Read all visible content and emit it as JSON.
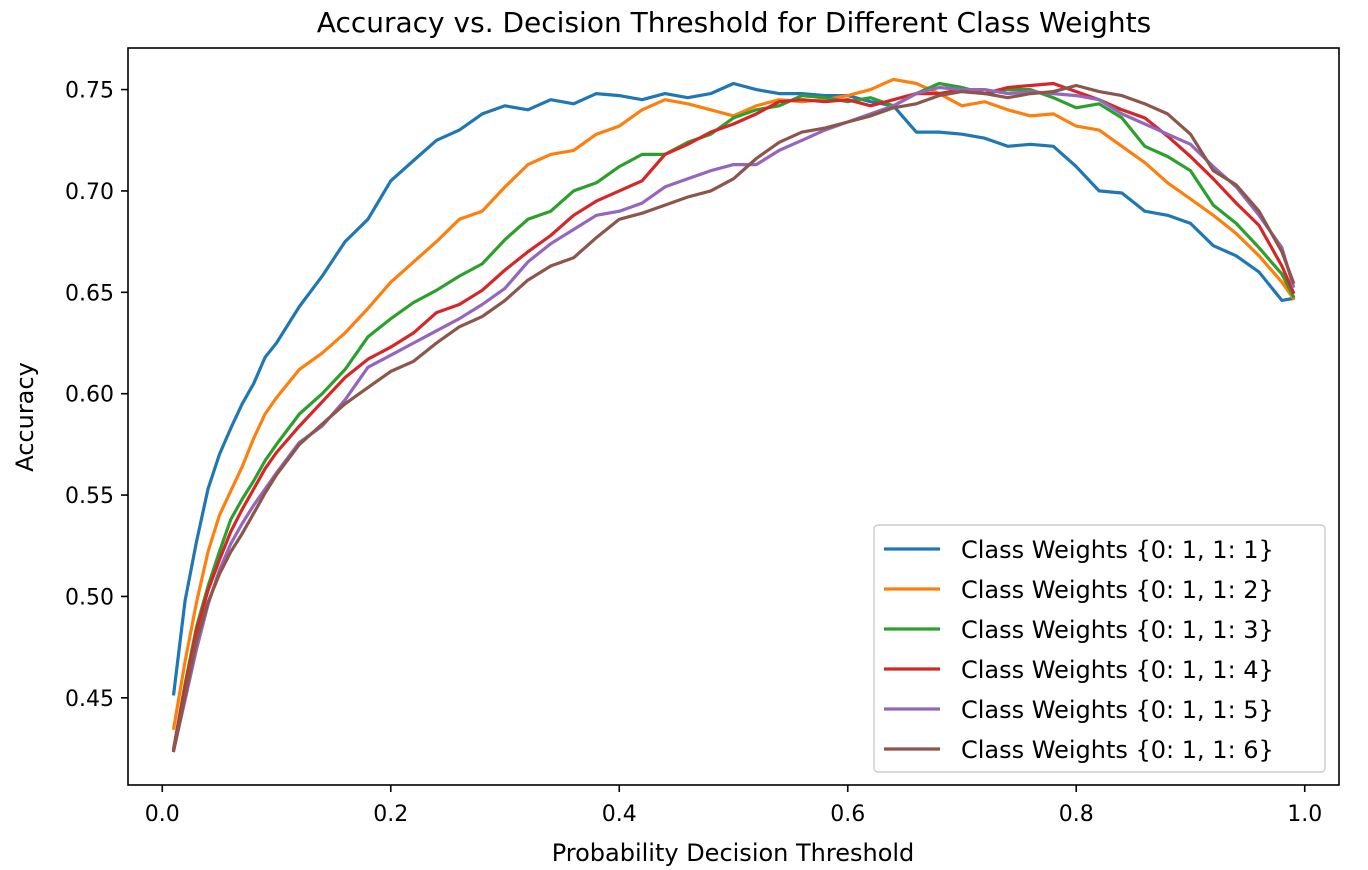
{
  "chart_data": {
    "type": "line",
    "title": "Accuracy vs. Decision Threshold for Different Class Weights",
    "xlabel": "Probability Decision Threshold",
    "ylabel": "Accuracy",
    "xlim": [
      -0.03,
      1.03
    ],
    "ylim": [
      0.407,
      0.7705
    ],
    "xticks": [
      0.0,
      0.2,
      0.4,
      0.6,
      0.8,
      1.0
    ],
    "xtick_labels": [
      "0.0",
      "0.2",
      "0.4",
      "0.6",
      "0.8",
      "1.0"
    ],
    "yticks": [
      0.45,
      0.5,
      0.55,
      0.6,
      0.65,
      0.7,
      0.75
    ],
    "ytick_labels": [
      "0.45",
      "0.50",
      "0.55",
      "0.60",
      "0.65",
      "0.70",
      "0.75"
    ],
    "grid": false,
    "legend_position": "lower-right",
    "x": [
      0.01,
      0.02,
      0.03,
      0.04,
      0.05,
      0.06,
      0.07,
      0.08,
      0.09,
      0.1,
      0.12,
      0.14,
      0.16,
      0.18,
      0.2,
      0.22,
      0.24,
      0.26,
      0.28,
      0.3,
      0.32,
      0.34,
      0.36,
      0.38,
      0.4,
      0.42,
      0.44,
      0.46,
      0.48,
      0.5,
      0.52,
      0.54,
      0.56,
      0.58,
      0.6,
      0.62,
      0.64,
      0.66,
      0.68,
      0.7,
      0.72,
      0.74,
      0.76,
      0.78,
      0.8,
      0.82,
      0.84,
      0.86,
      0.88,
      0.9,
      0.92,
      0.94,
      0.96,
      0.98,
      0.99
    ],
    "series": [
      {
        "name": "Class Weights {0: 1, 1: 1}",
        "color": "#1f77b4",
        "values": [
          0.452,
          0.498,
          0.527,
          0.553,
          0.57,
          0.583,
          0.595,
          0.605,
          0.618,
          0.625,
          0.643,
          0.658,
          0.675,
          0.686,
          0.705,
          0.715,
          0.725,
          0.73,
          0.738,
          0.742,
          0.74,
          0.745,
          0.743,
          0.748,
          0.747,
          0.745,
          0.748,
          0.746,
          0.748,
          0.753,
          0.75,
          0.748,
          0.748,
          0.747,
          0.747,
          0.744,
          0.742,
          0.729,
          0.729,
          0.728,
          0.726,
          0.722,
          0.723,
          0.722,
          0.712,
          0.7,
          0.699,
          0.69,
          0.688,
          0.684,
          0.673,
          0.668,
          0.66,
          0.646,
          0.647
        ]
      },
      {
        "name": "Class Weights {0: 1, 1: 2}",
        "color": "#ff7f0e",
        "values": [
          0.435,
          0.468,
          0.497,
          0.522,
          0.54,
          0.552,
          0.564,
          0.578,
          0.59,
          0.598,
          0.612,
          0.62,
          0.63,
          0.642,
          0.655,
          0.665,
          0.675,
          0.686,
          0.69,
          0.702,
          0.713,
          0.718,
          0.72,
          0.728,
          0.732,
          0.74,
          0.745,
          0.743,
          0.74,
          0.737,
          0.742,
          0.745,
          0.744,
          0.745,
          0.747,
          0.75,
          0.755,
          0.753,
          0.748,
          0.742,
          0.744,
          0.74,
          0.737,
          0.738,
          0.732,
          0.73,
          0.722,
          0.714,
          0.704,
          0.696,
          0.688,
          0.679,
          0.668,
          0.655,
          0.647
        ]
      },
      {
        "name": "Class Weights {0: 1, 1: 3}",
        "color": "#2ca02c",
        "values": [
          0.425,
          0.457,
          0.485,
          0.505,
          0.522,
          0.538,
          0.548,
          0.557,
          0.567,
          0.575,
          0.59,
          0.6,
          0.612,
          0.628,
          0.637,
          0.645,
          0.651,
          0.658,
          0.664,
          0.676,
          0.686,
          0.69,
          0.7,
          0.704,
          0.712,
          0.718,
          0.718,
          0.724,
          0.728,
          0.736,
          0.74,
          0.742,
          0.747,
          0.746,
          0.744,
          0.746,
          0.742,
          0.748,
          0.753,
          0.751,
          0.748,
          0.75,
          0.75,
          0.746,
          0.741,
          0.743,
          0.736,
          0.722,
          0.717,
          0.71,
          0.693,
          0.684,
          0.672,
          0.659,
          0.648
        ]
      },
      {
        "name": "Class Weights {0: 1, 1: 4}",
        "color": "#d62728",
        "values": [
          0.425,
          0.455,
          0.483,
          0.503,
          0.518,
          0.532,
          0.543,
          0.553,
          0.563,
          0.571,
          0.584,
          0.596,
          0.608,
          0.617,
          0.623,
          0.63,
          0.64,
          0.644,
          0.651,
          0.661,
          0.67,
          0.678,
          0.688,
          0.695,
          0.7,
          0.705,
          0.718,
          0.723,
          0.729,
          0.733,
          0.738,
          0.744,
          0.745,
          0.744,
          0.745,
          0.742,
          0.745,
          0.748,
          0.748,
          0.75,
          0.748,
          0.751,
          0.752,
          0.753,
          0.749,
          0.745,
          0.74,
          0.736,
          0.727,
          0.717,
          0.706,
          0.694,
          0.683,
          0.663,
          0.65
        ]
      },
      {
        "name": "Class Weights {0: 1, 1: 5}",
        "color": "#9467bd",
        "values": [
          0.424,
          0.449,
          0.474,
          0.496,
          0.513,
          0.526,
          0.536,
          0.545,
          0.553,
          0.561,
          0.576,
          0.584,
          0.597,
          0.613,
          0.619,
          0.625,
          0.631,
          0.637,
          0.644,
          0.652,
          0.665,
          0.674,
          0.681,
          0.688,
          0.69,
          0.694,
          0.702,
          0.706,
          0.71,
          0.713,
          0.713,
          0.72,
          0.725,
          0.73,
          0.734,
          0.738,
          0.742,
          0.748,
          0.751,
          0.75,
          0.75,
          0.748,
          0.749,
          0.748,
          0.747,
          0.745,
          0.738,
          0.733,
          0.728,
          0.723,
          0.712,
          0.702,
          0.688,
          0.672,
          0.653
        ]
      },
      {
        "name": "Class Weights {0: 1, 1: 6}",
        "color": "#8c564b",
        "values": [
          0.424,
          0.451,
          0.478,
          0.497,
          0.511,
          0.522,
          0.531,
          0.541,
          0.551,
          0.56,
          0.575,
          0.585,
          0.595,
          0.603,
          0.611,
          0.616,
          0.625,
          0.633,
          0.638,
          0.646,
          0.656,
          0.663,
          0.667,
          0.677,
          0.686,
          0.689,
          0.693,
          0.697,
          0.7,
          0.706,
          0.716,
          0.724,
          0.729,
          0.731,
          0.734,
          0.737,
          0.741,
          0.743,
          0.747,
          0.749,
          0.748,
          0.746,
          0.748,
          0.749,
          0.752,
          0.749,
          0.747,
          0.743,
          0.738,
          0.728,
          0.71,
          0.703,
          0.69,
          0.67,
          0.655
        ]
      }
    ]
  }
}
